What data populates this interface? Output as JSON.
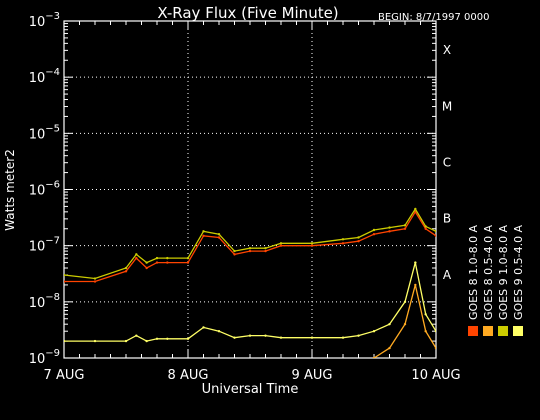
{
  "chart_data": {
    "type": "line",
    "title": "X-Ray Flux (Five Minute)",
    "begin_label": "BEGIN: 8/7/1997 0000",
    "xlabel": "Universal Time",
    "ylabel": "Watts meter2",
    "y_scale": "log",
    "ylim": [
      1e-09,
      0.001
    ],
    "xlim": [
      "1997-08-07",
      "1997-08-10"
    ],
    "x_ticks": [
      "7 AUG",
      "8 AUG",
      "9 AUG",
      "10 AUG"
    ],
    "y_ticks": [
      {
        "base": "10",
        "exp": "−9",
        "value": 1e-09
      },
      {
        "base": "10",
        "exp": "−8",
        "value": 1e-08
      },
      {
        "base": "10",
        "exp": "−7",
        "value": 1e-07
      },
      {
        "base": "10",
        "exp": "−6",
        "value": 1e-06
      },
      {
        "base": "10",
        "exp": "−5",
        "value": 1e-05
      },
      {
        "base": "10",
        "exp": "−4",
        "value": 0.0001
      },
      {
        "base": "10",
        "exp": "−3",
        "value": 0.001
      }
    ],
    "flare_classes": [
      {
        "label": "X",
        "value": 0.0001
      },
      {
        "label": "M",
        "value": 1e-05
      },
      {
        "label": "C",
        "value": 1e-06
      },
      {
        "label": "B",
        "value": 1e-07
      },
      {
        "label": "A",
        "value": 1e-08
      }
    ],
    "grid": true,
    "legend_position": "right",
    "x_values": [
      "1997-08-07 00:00",
      "1997-08-07 06:00",
      "1997-08-07 12:00",
      "1997-08-07 14:00",
      "1997-08-07 16:00",
      "1997-08-07 18:00",
      "1997-08-07 20:00",
      "1997-08-08 00:00",
      "1997-08-08 03:00",
      "1997-08-08 06:00",
      "1997-08-08 09:00",
      "1997-08-08 12:00",
      "1997-08-08 15:00",
      "1997-08-08 18:00",
      "1997-08-09 00:00",
      "1997-08-09 06:00",
      "1997-08-09 09:00",
      "1997-08-09 12:00",
      "1997-08-09 15:00",
      "1997-08-09 18:00",
      "1997-08-09 20:00",
      "1997-08-09 22:00",
      "1997-08-10 00:00"
    ],
    "series": [
      {
        "name": "GOES 8 1.0-8.0 A",
        "color": "#ff4400",
        "values": [
          2.3e-08,
          2.3e-08,
          3.5e-08,
          6e-08,
          4e-08,
          5e-08,
          5e-08,
          5e-08,
          1.5e-07,
          1.4e-07,
          7e-08,
          8e-08,
          8e-08,
          1e-07,
          1e-07,
          1.1e-07,
          1.2e-07,
          1.6e-07,
          1.8e-07,
          2e-07,
          4e-07,
          2e-07,
          1.5e-07
        ]
      },
      {
        "name": "GOES 9 1.0-8.0 A",
        "color": "#cccc00",
        "values": [
          3e-08,
          2.6e-08,
          4e-08,
          7e-08,
          5e-08,
          6e-08,
          6e-08,
          6e-08,
          1.8e-07,
          1.6e-07,
          8e-08,
          9e-08,
          9e-08,
          1.1e-07,
          1.1e-07,
          1.3e-07,
          1.4e-07,
          1.9e-07,
          2.1e-07,
          2.3e-07,
          4.5e-07,
          2.2e-07,
          1.8e-07
        ]
      },
      {
        "name": "GOES 8 0.5-4.0 A",
        "color": "#ffaa22",
        "values": [
          null,
          null,
          null,
          null,
          null,
          null,
          null,
          null,
          null,
          null,
          null,
          null,
          null,
          null,
          null,
          null,
          null,
          1e-09,
          1.5e-09,
          4e-09,
          2e-08,
          3e-09,
          1.5e-09
        ]
      },
      {
        "name": "GOES 9 0.5-4.0 A",
        "color": "#ffff66",
        "values": [
          2e-09,
          2e-09,
          2e-09,
          2.5e-09,
          2e-09,
          2.2e-09,
          2.2e-09,
          2.2e-09,
          3.5e-09,
          3e-09,
          2.3e-09,
          2.5e-09,
          2.5e-09,
          2.3e-09,
          2.3e-09,
          2.3e-09,
          2.5e-09,
          3e-09,
          4e-09,
          1e-08,
          5e-08,
          6e-09,
          3e-09
        ]
      }
    ]
  }
}
